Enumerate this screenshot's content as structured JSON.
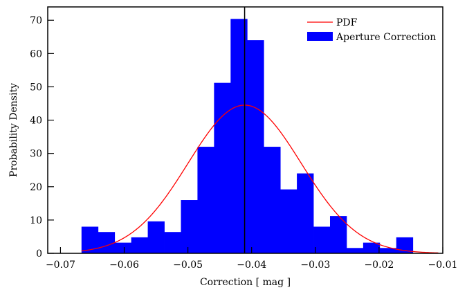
{
  "chart_data": {
    "type": "bar",
    "title": "",
    "xlabel": "Correction [ mag ]",
    "ylabel": "Probability Density",
    "xlim": [
      -0.072,
      -0.01
    ],
    "ylim": [
      0,
      74
    ],
    "xticks": [
      -0.07,
      -0.06,
      -0.05,
      -0.04,
      -0.03,
      -0.02,
      -0.01
    ],
    "xtick_labels": [
      "−0.07",
      "−0.06",
      "−0.05",
      "−0.04",
      "−0.03",
      "−0.02",
      "−0.01"
    ],
    "yticks": [
      0,
      10,
      20,
      30,
      40,
      50,
      60,
      70
    ],
    "ytick_labels": [
      "0",
      "10",
      "20",
      "30",
      "40",
      "50",
      "60",
      "70"
    ],
    "grid": false,
    "legend_position": "top-right",
    "histogram": {
      "name": "Aperture Correction",
      "color": "#0000ff",
      "bin_edges": [
        -0.0667,
        -0.0641,
        -0.0615,
        -0.0589,
        -0.0563,
        -0.0537,
        -0.0511,
        -0.0485,
        -0.0459,
        -0.0433,
        -0.0407,
        -0.0381,
        -0.0355,
        -0.0329,
        -0.0303,
        -0.0277,
        -0.0251,
        -0.0225,
        -0.0199,
        -0.0173,
        -0.0147
      ],
      "values": [
        8.0,
        6.4,
        3.2,
        4.8,
        9.6,
        6.4,
        16.0,
        32.0,
        51.2,
        70.4,
        64.0,
        32.0,
        19.2,
        24.0,
        8.0,
        11.2,
        1.6,
        3.2,
        1.6,
        4.8
      ]
    },
    "curve": {
      "name": "PDF",
      "color": "#ff0000",
      "type": "normal",
      "mean": -0.0411,
      "std": 0.0089,
      "peak": 44.5
    },
    "vline": {
      "x": -0.0411,
      "color": "#000000"
    }
  }
}
